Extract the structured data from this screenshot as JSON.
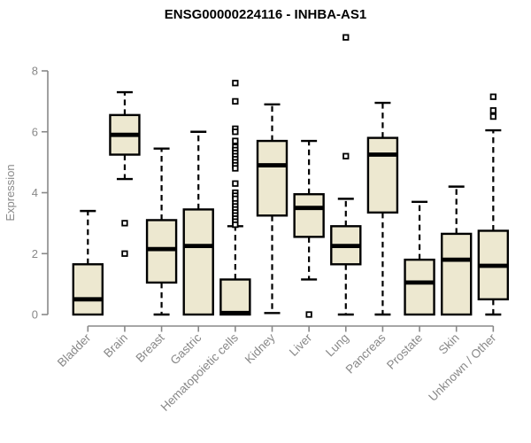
{
  "page": {
    "background": "#ffffff"
  },
  "header": {
    "title": "ENSG00000224116 - INHBA-AS1"
  },
  "colors": {
    "title": "#000000",
    "axis": "#888888",
    "tick_label": "#888888",
    "axis_title": "#8a8a8a",
    "box_fill": "#EDE8D0",
    "box_stroke": "#000000",
    "median": "#000000",
    "whisker": "#000000",
    "outlier_fill": "#ffffff",
    "outlier_stroke": "#000000"
  },
  "chart_data": {
    "type": "boxplot",
    "title": "ENSG00000224116 - INHBA-AS1",
    "xlabel": "",
    "ylabel": "Expression",
    "ylim": [
      0,
      8
    ],
    "yticks": [
      0,
      2,
      4,
      6,
      8
    ],
    "grid": false,
    "legend": "none",
    "categories": [
      "Bladder",
      "Brain",
      "Breast",
      "Gastric",
      "Hematopoietic cells",
      "Kidney",
      "Liver",
      "Lung",
      "Pancreas",
      "Prostate",
      "Skin",
      "Unknown / Other"
    ],
    "series": [
      {
        "name": "Bladder",
        "low": 0,
        "q1": 0,
        "median": 0.5,
        "q3": 1.65,
        "high": 3.4,
        "outliers": []
      },
      {
        "name": "Brain",
        "low": 4.45,
        "q1": 5.25,
        "median": 5.9,
        "q3": 6.55,
        "high": 7.3,
        "outliers": [
          3.0,
          2.0
        ]
      },
      {
        "name": "Breast",
        "low": 0,
        "q1": 1.05,
        "median": 2.15,
        "q3": 3.1,
        "high": 5.45,
        "outliers": []
      },
      {
        "name": "Gastric",
        "low": 0,
        "q1": 0,
        "median": 2.25,
        "q3": 3.45,
        "high": 6.0,
        "outliers": []
      },
      {
        "name": "Hematopoietic cells",
        "low": 0,
        "q1": 0,
        "median": 0.05,
        "q3": 1.15,
        "high": 2.9,
        "outliers": [
          7.6,
          7.0,
          6.1,
          6.0,
          5.7,
          5.5,
          5.4,
          5.3,
          5.2,
          5.1,
          5.0,
          4.9,
          4.8,
          4.3,
          4.0,
          3.9,
          3.8,
          3.65,
          3.55,
          3.45,
          3.35,
          3.25,
          3.15,
          3.05,
          2.95
        ]
      },
      {
        "name": "Kidney",
        "low": 0.05,
        "q1": 3.25,
        "median": 4.9,
        "q3": 5.7,
        "high": 6.9,
        "outliers": []
      },
      {
        "name": "Liver",
        "low": 1.15,
        "q1": 2.55,
        "median": 3.5,
        "q3": 3.95,
        "high": 5.7,
        "outliers": [
          0
        ]
      },
      {
        "name": "Lung",
        "low": 0,
        "q1": 1.65,
        "median": 2.25,
        "q3": 2.9,
        "high": 3.8,
        "outliers": [
          9.1,
          5.2
        ]
      },
      {
        "name": "Pancreas",
        "low": 0,
        "q1": 3.35,
        "median": 5.25,
        "q3": 5.8,
        "high": 6.95,
        "outliers": []
      },
      {
        "name": "Prostate",
        "low": 0,
        "q1": 0,
        "median": 1.05,
        "q3": 1.8,
        "high": 3.7,
        "outliers": []
      },
      {
        "name": "Skin",
        "low": 0,
        "q1": 0,
        "median": 1.8,
        "q3": 2.65,
        "high": 4.2,
        "outliers": []
      },
      {
        "name": "Unknown / Other",
        "low": 0,
        "q1": 0.5,
        "median": 1.6,
        "q3": 2.75,
        "high": 6.05,
        "outliers": [
          7.15,
          6.7,
          6.5
        ]
      }
    ]
  }
}
